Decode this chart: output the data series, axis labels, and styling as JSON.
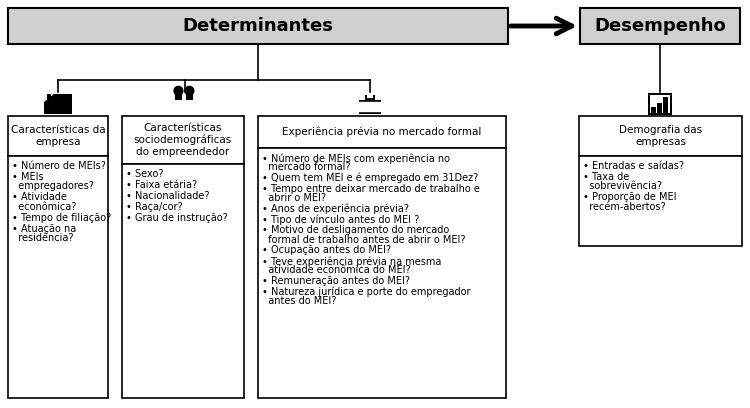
{
  "bg_color": "#ffffff",
  "box_fill_gray": "#d0d0d0",
  "box_edge": "#000000",
  "white_fill": "#ffffff",
  "title": "Determinantes",
  "title2": "Desempenho",
  "col1_title": "Características da\nempresa",
  "col2_title": "Características\nsociodemográficas\ndo empreendedor",
  "col3_title": "Experiência prévia no mercado formal",
  "col4_title": "Demografia das\nempresas",
  "col1_items": [
    "• Número de MEIs?",
    "• MEIs\n  empregadores?",
    "• Atividade\n  econômica?",
    "• Tempo de filiação?",
    "• Atuação na\n  residência?"
  ],
  "col2_items": [
    "• Sexo?",
    "• Faixa etária?",
    "• Nacionalidade?",
    "• Raça/cor?",
    "• Grau de instrução?"
  ],
  "col3_items": [
    "• Número de MEIs com experiência no\n  mercado formal?",
    "• Quem tem MEI e é empregado em 31Dez?",
    "• Tempo entre deixar mercado de trabalho e\n  abrir o MEI?",
    "• Anos de experiência prévia?",
    "• Tipo de vínculo antes do MEI ?",
    "• Motivo de desligamento do mercado\n  formal de trabalho antes de abrir o MEI?",
    "• Ocupação antes do MEI?",
    "• Teve experiência prévia na mesma\n  atividade econômica do MEI?",
    "• Remuneração antes do MEI?",
    "• Natureza jurídica e porte do empregador\n  antes do MEI?"
  ],
  "col4_items": [
    "• Entradas e saídas?",
    "• Taxa de\n  sobrevivência?",
    "• Proporção de MEI\n  recém-abertos?"
  ],
  "fig_w": 7.5,
  "fig_h": 4.08,
  "dpi": 100
}
